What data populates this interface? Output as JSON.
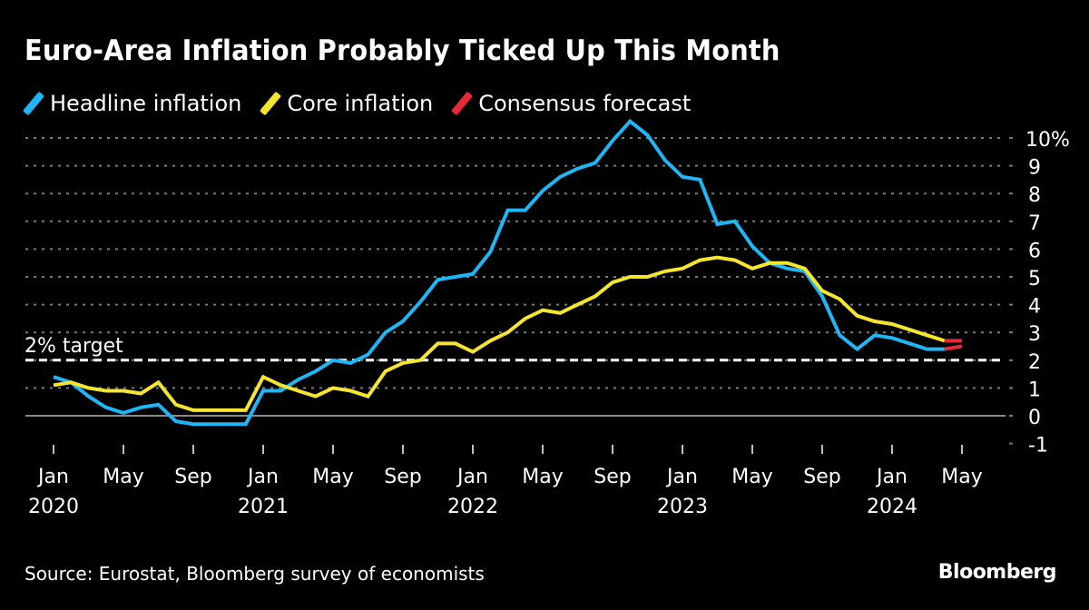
{
  "header": {
    "title": "Euro-Area Inflation Probably Ticked Up This Month"
  },
  "legend": [
    {
      "label": "Headline inflation",
      "color": "#1EB6F5"
    },
    {
      "label": "Core inflation",
      "color": "#F5E52E"
    },
    {
      "label": "Consensus forecast",
      "color": "#E8293B"
    }
  ],
  "footer": {
    "source": "Source: Eurostat, Bloomberg survey of economists",
    "brand": "Bloomberg"
  },
  "chart_data": {
    "type": "line",
    "title": "Euro-Area Inflation Probably Ticked Up This Month",
    "xlabel": "",
    "ylabel": "",
    "ylim": [
      -1,
      10
    ],
    "y_ticks": [
      "10%",
      "9",
      "8",
      "7",
      "6",
      "5",
      "4",
      "3",
      "2",
      "1",
      "0",
      "-1"
    ],
    "y_tick_values": [
      10,
      9,
      8,
      7,
      6,
      5,
      4,
      3,
      2,
      1,
      0,
      -1
    ],
    "x_ticks": [
      {
        "month": "Jan",
        "year": "2020",
        "index": 0
      },
      {
        "month": "May",
        "year": "",
        "index": 4
      },
      {
        "month": "Sep",
        "year": "",
        "index": 8
      },
      {
        "month": "Jan",
        "year": "2021",
        "index": 12
      },
      {
        "month": "May",
        "year": "",
        "index": 16
      },
      {
        "month": "Sep",
        "year": "",
        "index": 20
      },
      {
        "month": "Jan",
        "year": "2022",
        "index": 24
      },
      {
        "month": "May",
        "year": "",
        "index": 28
      },
      {
        "month": "Sep",
        "year": "",
        "index": 32
      },
      {
        "month": "Jan",
        "year": "2023",
        "index": 36
      },
      {
        "month": "May",
        "year": "",
        "index": 40
      },
      {
        "month": "Sep",
        "year": "",
        "index": 44
      },
      {
        "month": "Jan",
        "year": "2024",
        "index": 48
      },
      {
        "month": "May",
        "year": "",
        "index": 52
      }
    ],
    "x_range": [
      "2020-01",
      "2024-05"
    ],
    "grid": true,
    "legend_position": "top-left",
    "annotation": {
      "label": "2% target",
      "value": 2
    },
    "series": [
      {
        "name": "Headline inflation",
        "color": "#1EB6F5",
        "start": "2020-01",
        "values": [
          1.4,
          1.2,
          0.7,
          0.3,
          0.1,
          0.3,
          0.4,
          -0.2,
          -0.3,
          -0.3,
          -0.3,
          -0.3,
          0.9,
          0.9,
          1.3,
          1.6,
          2.0,
          1.9,
          2.2,
          3.0,
          3.4,
          4.1,
          4.9,
          5.0,
          5.1,
          5.9,
          7.4,
          7.4,
          8.1,
          8.6,
          8.9,
          9.1,
          9.9,
          10.6,
          10.1,
          9.2,
          8.6,
          8.5,
          6.9,
          7.0,
          6.1,
          5.5,
          5.3,
          5.2,
          4.3,
          2.9,
          2.4,
          2.9,
          2.8,
          2.6,
          2.4,
          2.4
        ]
      },
      {
        "name": "Core inflation",
        "color": "#F5E52E",
        "start": "2020-01",
        "values": [
          1.1,
          1.2,
          1.0,
          0.9,
          0.9,
          0.8,
          1.2,
          0.4,
          0.2,
          0.2,
          0.2,
          0.2,
          1.4,
          1.1,
          0.9,
          0.7,
          1.0,
          0.9,
          0.7,
          1.6,
          1.9,
          2.0,
          2.6,
          2.6,
          2.3,
          2.7,
          3.0,
          3.5,
          3.8,
          3.7,
          4.0,
          4.3,
          4.8,
          5.0,
          5.0,
          5.2,
          5.3,
          5.6,
          5.7,
          5.6,
          5.3,
          5.5,
          5.5,
          5.3,
          4.5,
          4.2,
          3.6,
          3.4,
          3.3,
          3.1,
          2.9,
          2.7
        ]
      },
      {
        "name": "Consensus forecast (headline)",
        "color": "#E8293B",
        "points": [
          {
            "month": "2024-04",
            "value": 2.4
          },
          {
            "month": "2024-05",
            "value": 2.5
          }
        ]
      },
      {
        "name": "Consensus forecast (core)",
        "color": "#E8293B",
        "points": [
          {
            "month": "2024-04",
            "value": 2.7
          },
          {
            "month": "2024-05",
            "value": 2.7
          }
        ]
      }
    ]
  }
}
